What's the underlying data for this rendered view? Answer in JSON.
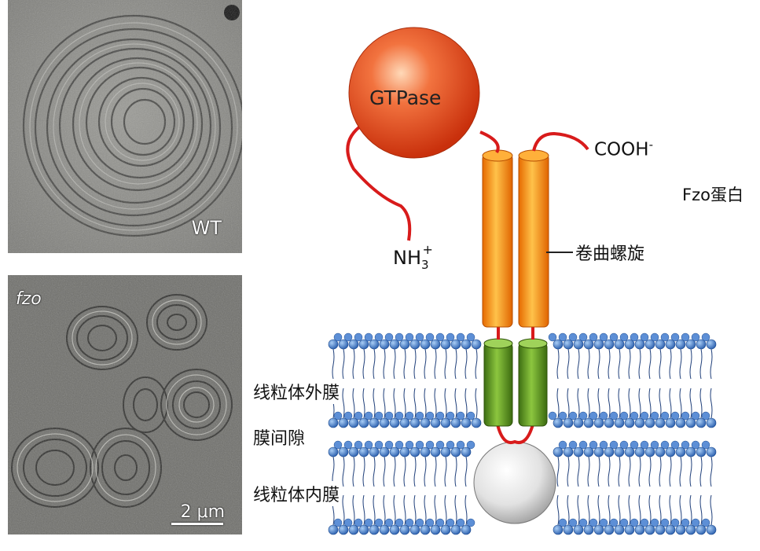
{
  "micrographs": {
    "wt_label": "WT",
    "fzo_label": "fzo",
    "scale_label": "2 μm"
  },
  "diagram": {
    "gtpase": "GTPase",
    "nh3_base": "NH",
    "nh3_sub": "3",
    "nh3_sup": "+",
    "cooh_base": "COOH",
    "cooh_sup": "-",
    "coiled_coil": "卷曲螺旋",
    "fzo_protein": "Fzo蛋白",
    "outer_membrane": "线粒体外膜",
    "intermembrane_space": "膜间隙",
    "inner_membrane": "线粒体内膜"
  },
  "colors": {
    "gtpase_ball": "#e8421e",
    "coil": "#f28a12",
    "transmembrane": "#4f8a1c",
    "lipid_head": "#3a72c4",
    "linker": "#d81b1b",
    "inner_ball": "#e6e6e6"
  }
}
